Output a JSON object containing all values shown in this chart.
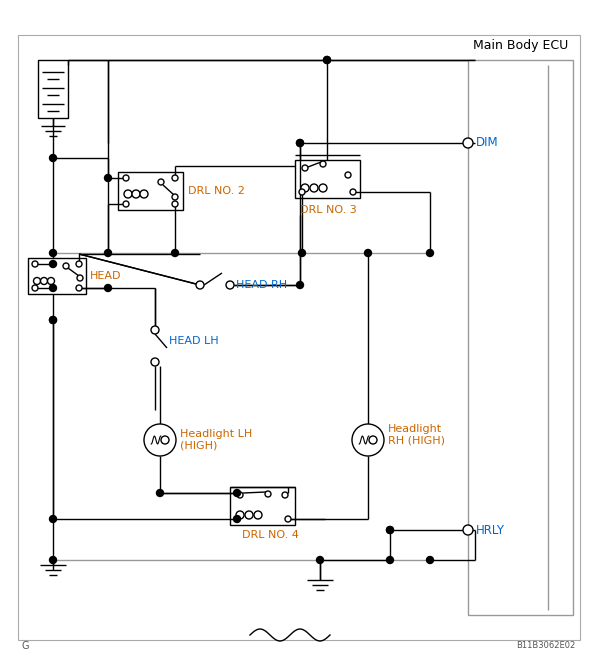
{
  "title": "Main Body ECU",
  "subtitle_left": "G",
  "subtitle_right": "B11B3062E02",
  "line_color": "#000000",
  "gray_color": "#999999",
  "blue": "#0066cc",
  "orange": "#cc6600",
  "labels": {
    "DIM": "DIM",
    "HRLY": "HRLY",
    "HEAD": "HEAD",
    "HEAD_RH": "HEAD RH",
    "HEAD_LH": "HEAD LH",
    "DRL2": "DRL NO. 2",
    "DRL3": "DRL NO. 3",
    "DRL4": "DRL NO. 4",
    "HL_LH": "Headlight LH\n(HIGH)",
    "HL_RH": "Headlight\nRH (HIGH)",
    "MainBodyECU": "Main Body ECU"
  }
}
